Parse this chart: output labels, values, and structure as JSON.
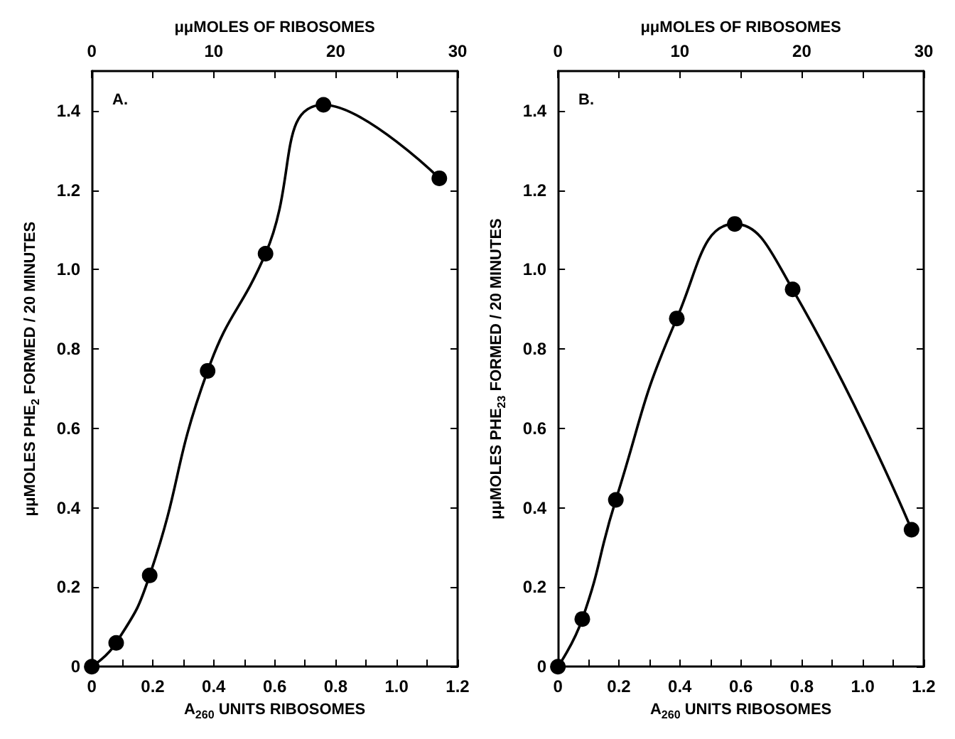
{
  "chart_data": [
    {
      "type": "line",
      "title": "A.",
      "xlabel": "A$_{260}$ UNITS RIBOSOMES",
      "ylabel": "μμMOLES PHE$_{2}$ FORMED / 20 MINUTES",
      "x2label": "μμMOLES OF RIBOSOMES",
      "x": [
        0,
        0.08,
        0.19,
        0.38,
        0.57,
        0.76,
        1.14
      ],
      "series": [
        {
          "color": "#000000",
          "values": [
            0,
            0.06,
            0.23,
            0.745,
            1.04,
            1.415,
            1.23
          ]
        }
      ],
      "xlim": [
        0,
        1.2
      ],
      "xticks": [
        0,
        {
          "value": 0.1,
          "label": null
        },
        0.2,
        {
          "value": 0.3,
          "label": null
        },
        0.4,
        {
          "value": 0.5,
          "label": null
        },
        0.6,
        {
          "value": 0.7,
          "label": null
        },
        0.8,
        {
          "value": 0.9,
          "label": null
        },
        {
          "value": 1,
          "label": "1.0"
        },
        {
          "value": 1.1,
          "label": null
        },
        1.2
      ],
      "x2lim": [
        0,
        30
      ],
      "x2ticks": [
        0,
        {
          "value": 5,
          "label": null
        },
        10,
        {
          "value": 15,
          "label": null
        },
        20,
        {
          "value": 25,
          "label": null
        },
        30
      ],
      "ylim": [
        0,
        1.5
      ],
      "yticks": [
        0,
        0.2,
        0.4,
        0.6,
        0.8,
        {
          "value": 1,
          "label": "1.0"
        },
        1.2,
        1.4
      ],
      "grid": false,
      "marker": "circle",
      "line_style": "solid"
    },
    {
      "type": "line",
      "title": "B.",
      "xlabel": "A$_{260}$ UNITS RIBOSOMES",
      "ylabel": "μμMOLES PHE$_{23}$ FORMED / 20 MINUTES",
      "x2label": "μμMOLES OF RIBOSOMES",
      "x": [
        0,
        0.08,
        0.19,
        0.39,
        0.58,
        0.77,
        1.16
      ],
      "series": [
        {
          "color": "#000000",
          "values": [
            0,
            0.12,
            0.42,
            0.877,
            1.115,
            0.95,
            0.345
          ]
        }
      ],
      "xlim": [
        0,
        1.2
      ],
      "xticks": [
        0,
        {
          "value": 0.1,
          "label": null
        },
        0.2,
        {
          "value": 0.3,
          "label": null
        },
        0.4,
        {
          "value": 0.5,
          "label": null
        },
        0.6,
        {
          "value": 0.7,
          "label": null
        },
        0.8,
        {
          "value": 0.9,
          "label": null
        },
        {
          "value": 1,
          "label": "1.0"
        },
        {
          "value": 1.1,
          "label": null
        },
        1.2
      ],
      "x2lim": [
        0,
        30
      ],
      "x2ticks": [
        0,
        {
          "value": 5,
          "label": null
        },
        10,
        {
          "value": 15,
          "label": null
        },
        20,
        {
          "value": 25,
          "label": null
        },
        30
      ],
      "ylim": [
        0,
        1.5
      ],
      "yticks": [
        0,
        0.2,
        0.4,
        0.6,
        0.8,
        {
          "value": 1,
          "label": "1.0"
        },
        1.2,
        1.4
      ],
      "grid": false,
      "marker": "circle",
      "line_style": "solid"
    }
  ]
}
